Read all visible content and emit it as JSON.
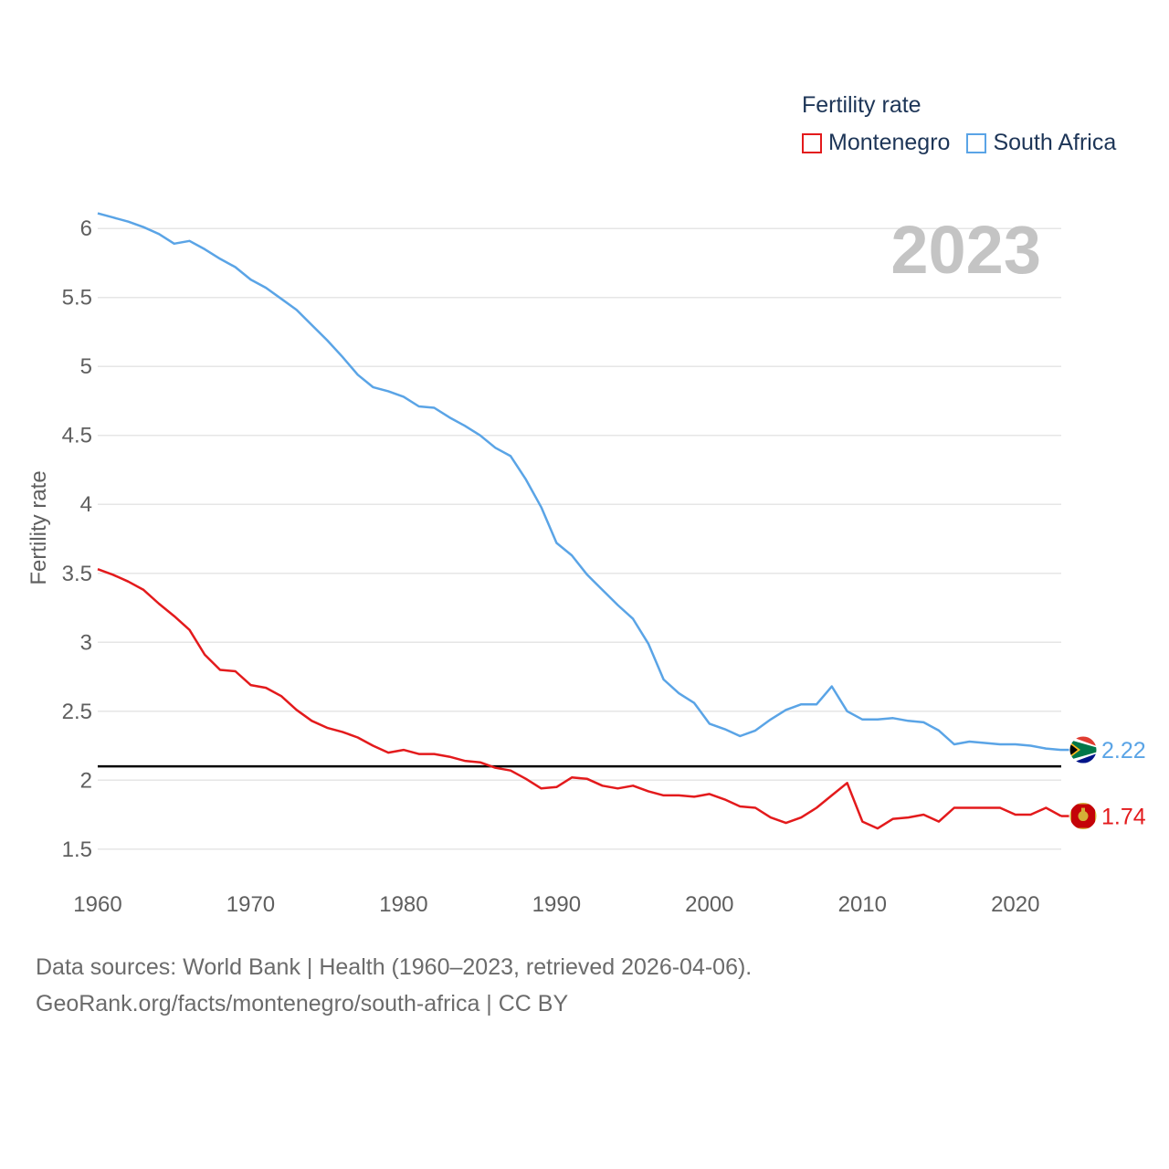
{
  "legend": {
    "title": "Fertility rate",
    "items": [
      {
        "label": "Montenegro",
        "color": "#e31a1c"
      },
      {
        "label": "South Africa",
        "color": "#5aa4e6"
      }
    ]
  },
  "footer": {
    "line1": "Data sources: World Bank | Health (1960–2023, retrieved 2026-04-06).",
    "line2": "GeoRank.org/facts/montenegro/south-africa | CC BY"
  },
  "chart_data": {
    "type": "line",
    "title": "Fertility rate",
    "year_label": "2023",
    "xlabel": "",
    "ylabel": "Fertility rate",
    "xlim": [
      1960,
      2023
    ],
    "ylim": [
      1.3,
      6.2
    ],
    "x_ticks": [
      1960,
      1970,
      1980,
      1990,
      2000,
      2010,
      2020
    ],
    "y_ticks": [
      1.5,
      2,
      2.5,
      3,
      3.5,
      4,
      4.5,
      5,
      5.5,
      6
    ],
    "y_tick_labels": [
      "1.5",
      "2",
      "2.5",
      "3",
      "3.5",
      "4",
      "4.5",
      "5",
      "5.5",
      "6"
    ],
    "grid": true,
    "legend_position": "top-right",
    "reference_line": {
      "y": 2.1,
      "color": "#000000"
    },
    "x": [
      1960,
      1961,
      1962,
      1963,
      1964,
      1965,
      1966,
      1967,
      1968,
      1969,
      1970,
      1971,
      1972,
      1973,
      1974,
      1975,
      1976,
      1977,
      1978,
      1979,
      1980,
      1981,
      1982,
      1983,
      1984,
      1985,
      1986,
      1987,
      1988,
      1989,
      1990,
      1991,
      1992,
      1993,
      1994,
      1995,
      1996,
      1997,
      1998,
      1999,
      2000,
      2001,
      2002,
      2003,
      2004,
      2005,
      2006,
      2007,
      2008,
      2009,
      2010,
      2011,
      2012,
      2013,
      2014,
      2015,
      2016,
      2017,
      2018,
      2019,
      2020,
      2021,
      2022,
      2023
    ],
    "series": [
      {
        "name": "Montenegro",
        "color": "#e31a1c",
        "end_label": "1.74",
        "values": [
          3.53,
          3.49,
          3.44,
          3.38,
          3.28,
          3.19,
          3.09,
          2.91,
          2.8,
          2.79,
          2.69,
          2.67,
          2.61,
          2.51,
          2.43,
          2.38,
          2.35,
          2.31,
          2.25,
          2.2,
          2.22,
          2.19,
          2.19,
          2.17,
          2.14,
          2.13,
          2.09,
          2.07,
          2.01,
          1.94,
          1.95,
          2.02,
          2.01,
          1.96,
          1.94,
          1.96,
          1.92,
          1.89,
          1.89,
          1.88,
          1.9,
          1.86,
          1.81,
          1.8,
          1.73,
          1.69,
          1.73,
          1.8,
          1.89,
          1.98,
          1.7,
          1.65,
          1.72,
          1.73,
          1.75,
          1.7,
          1.8,
          1.8,
          1.8,
          1.8,
          1.75,
          1.75,
          1.8,
          1.74
        ]
      },
      {
        "name": "South Africa",
        "color": "#5aa4e6",
        "end_label": "2.22",
        "values": [
          6.11,
          6.08,
          6.05,
          6.01,
          5.96,
          5.89,
          5.91,
          5.85,
          5.78,
          5.72,
          5.63,
          5.57,
          5.49,
          5.41,
          5.3,
          5.19,
          5.07,
          4.94,
          4.85,
          4.82,
          4.78,
          4.71,
          4.7,
          4.63,
          4.57,
          4.5,
          4.41,
          4.35,
          4.18,
          3.98,
          3.72,
          3.63,
          3.49,
          3.38,
          3.27,
          3.17,
          2.99,
          2.73,
          2.63,
          2.56,
          2.41,
          2.37,
          2.32,
          2.36,
          2.44,
          2.51,
          2.55,
          2.55,
          2.68,
          2.5,
          2.44,
          2.44,
          2.45,
          2.43,
          2.42,
          2.36,
          2.26,
          2.28,
          2.27,
          2.26,
          2.26,
          2.25,
          2.23,
          2.22
        ]
      }
    ]
  }
}
